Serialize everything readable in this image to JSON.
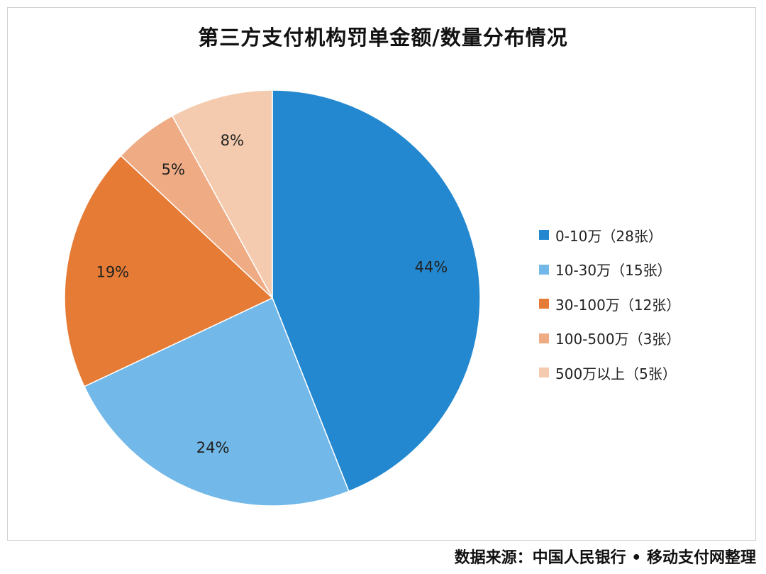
{
  "title": "第三方支付机构罚单金额/数量分布情况",
  "source": "数据来源：中国人民银行 • 移动支付网整理",
  "chart_data": {
    "type": "pie",
    "title": "第三方支付机构罚单金额/数量分布情况",
    "legend_position": "right",
    "categories": [
      "0-10万（28张）",
      "10-30万（15张）",
      "30-100万（12张）",
      "100-500万（3张）",
      "500万以上（5张）"
    ],
    "values": [
      44,
      24,
      19,
      5,
      8
    ],
    "labels": [
      "44%",
      "24%",
      "19%",
      "5%",
      "8%"
    ],
    "colors": [
      "#2388cf",
      "#72b8e8",
      "#e57b34",
      "#efab84",
      "#f4cbae"
    ]
  }
}
